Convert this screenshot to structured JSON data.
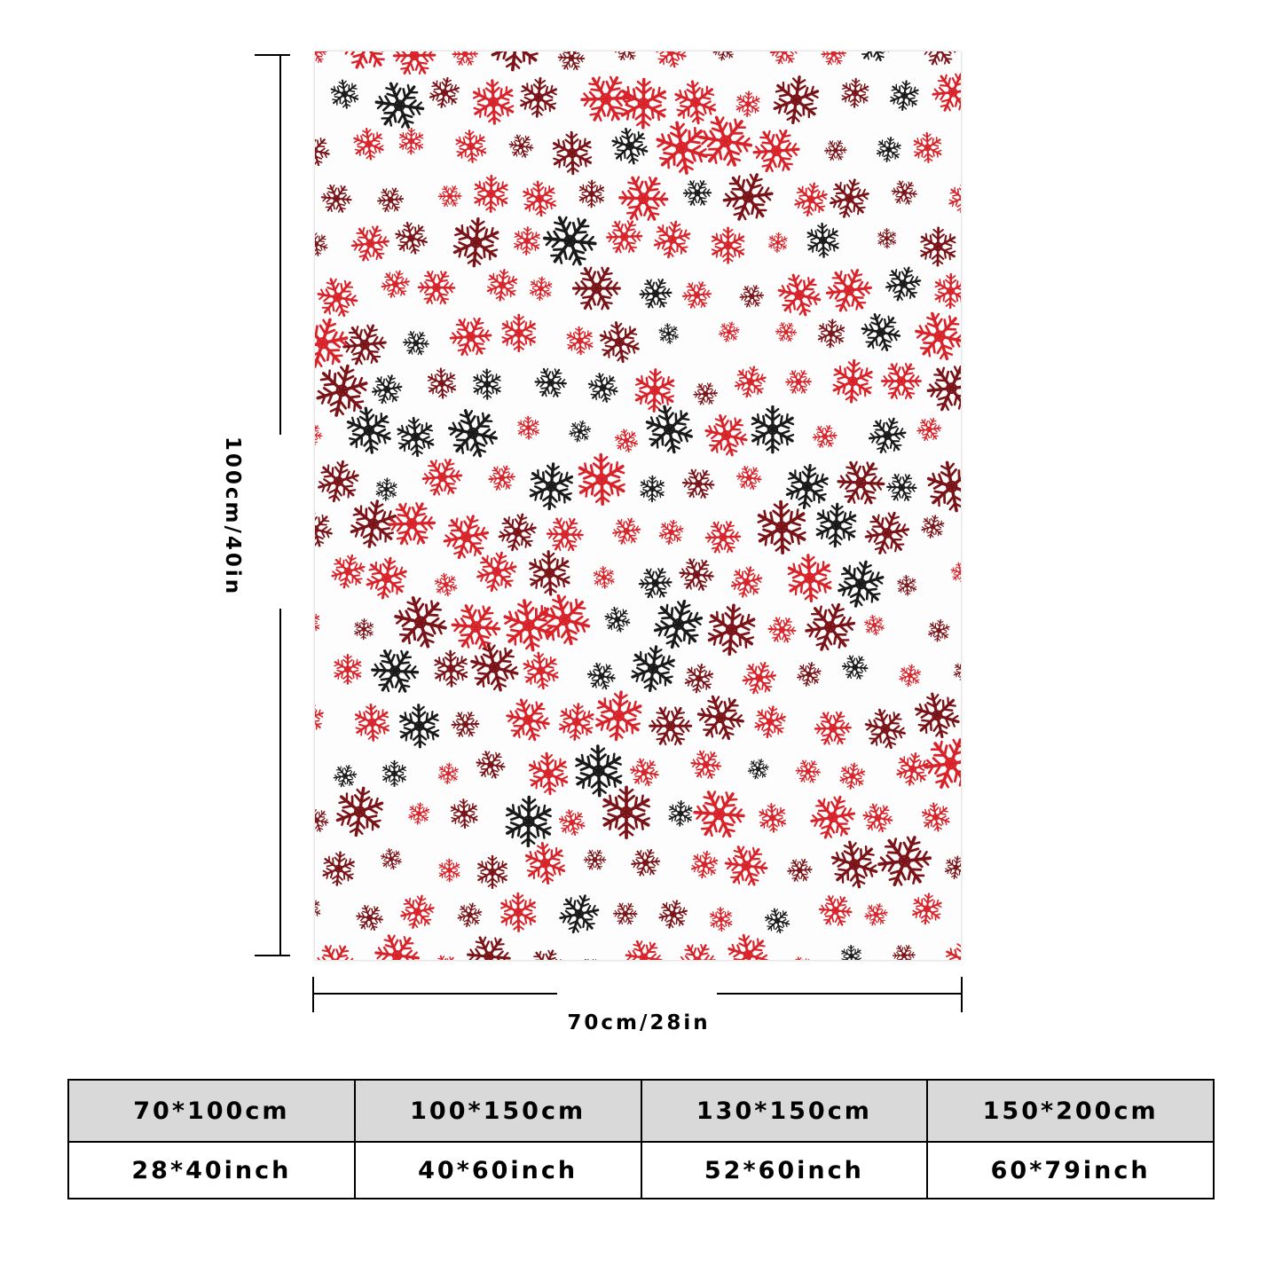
{
  "product": {
    "pattern": "snowflake-print-blanket",
    "colors": {
      "red": "#d8232a",
      "dark_red": "#7a1418",
      "black": "#1a1a1a",
      "background": "#fdfdfd"
    }
  },
  "dimensions": {
    "height_label": "100cm/40in",
    "width_label": "70cm/28in"
  },
  "size_table": {
    "cm": [
      "70*100cm",
      "100*150cm",
      "130*150cm",
      "150*200cm"
    ],
    "inch": [
      "28*40inch",
      "40*60inch",
      "52*60inch",
      "60*79inch"
    ]
  }
}
